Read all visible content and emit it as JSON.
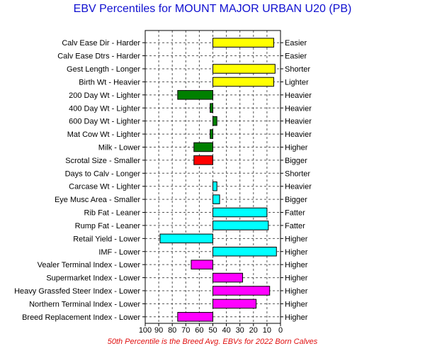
{
  "title": "EBV Percentiles for MOUNT MAJOR URBAN U20 (PB)",
  "footer": "50th Percentile is the Breed Avg. EBVs for 2022 Born Calves",
  "chart_data": {
    "type": "bar",
    "orientation": "horizontal",
    "baseline": 50,
    "xlim": [
      100,
      0
    ],
    "xticks": [
      100,
      90,
      80,
      70,
      60,
      50,
      40,
      30,
      20,
      10,
      0
    ],
    "grid": true,
    "colors": {
      "yellow": "#ffff00",
      "green": "#008000",
      "red": "#ff0000",
      "cyan": "#00ffff",
      "magenta": "#ff00ff"
    },
    "traits": [
      {
        "left": "Calv Ease Dir - Harder",
        "right": "Easier",
        "value": 5,
        "color": "yellow"
      },
      {
        "left": "Calv Ease Dtrs - Harder",
        "right": "Easier",
        "value": null,
        "color": "yellow"
      },
      {
        "left": "Gest Length - Longer",
        "right": "Shorter",
        "value": 4,
        "color": "yellow"
      },
      {
        "left": "Birth Wt - Heavier",
        "right": "Lighter",
        "value": 5,
        "color": "yellow"
      },
      {
        "left": "200 Day Wt - Lighter",
        "right": "Heavier",
        "value": 76,
        "color": "green"
      },
      {
        "left": "400 Day Wt - Lighter",
        "right": "Heavier",
        "value": 52,
        "color": "green"
      },
      {
        "left": "600 Day Wt - Lighter",
        "right": "Heavier",
        "value": 47,
        "color": "green"
      },
      {
        "left": "Mat Cow Wt - Lighter",
        "right": "Heavier",
        "value": 52,
        "color": "green"
      },
      {
        "left": "Milk - Lower",
        "right": "Higher",
        "value": 64,
        "color": "green"
      },
      {
        "left": "Scrotal Size - Smaller",
        "right": "Bigger",
        "value": 64,
        "color": "red"
      },
      {
        "left": "Days to Calv - Longer",
        "right": "Shorter",
        "value": null,
        "color": "red"
      },
      {
        "left": "Carcase Wt - Lighter",
        "right": "Heavier",
        "value": 47,
        "color": "cyan"
      },
      {
        "left": "Eye Musc Area - Smaller",
        "right": "Bigger",
        "value": 45,
        "color": "cyan"
      },
      {
        "left": "Rib Fat - Leaner",
        "right": "Fatter",
        "value": 10,
        "color": "cyan"
      },
      {
        "left": "Rump Fat - Leaner",
        "right": "Fatter",
        "value": 9,
        "color": "cyan"
      },
      {
        "left": "Retail Yield - Lower",
        "right": "Higher",
        "value": 89,
        "color": "cyan"
      },
      {
        "left": "IMF - Lower",
        "right": "Higher",
        "value": 3,
        "color": "cyan"
      },
      {
        "left": "Vealer Terminal Index - Lower",
        "right": "Higher",
        "value": 66,
        "color": "magenta"
      },
      {
        "left": "Supermarket Index - Lower",
        "right": "Higher",
        "value": 28,
        "color": "magenta"
      },
      {
        "left": "Heavy Grassfed Steer Index - Lower",
        "right": "Higher",
        "value": 8,
        "color": "magenta"
      },
      {
        "left": "Northern Terminal Index - Lower",
        "right": "Higher",
        "value": 18,
        "color": "magenta"
      },
      {
        "left": "Breed Replacement Index - Lower",
        "right": "Higher",
        "value": 76,
        "color": "magenta"
      }
    ]
  }
}
